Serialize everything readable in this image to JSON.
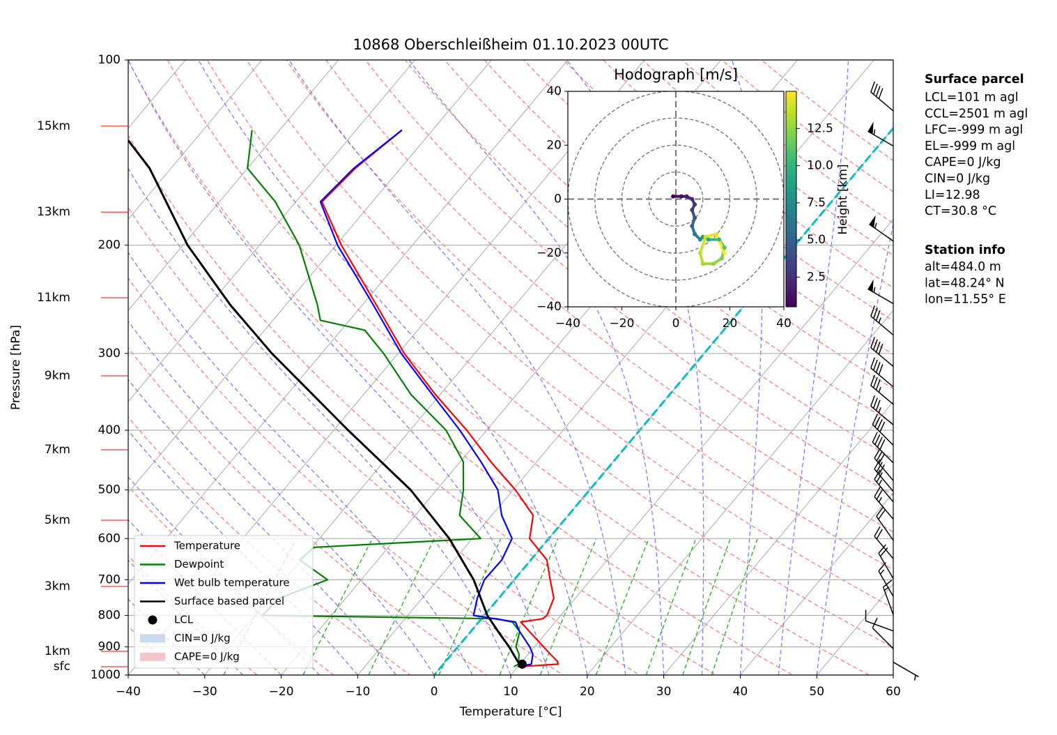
{
  "chart_data": [
    {
      "type": "skewt",
      "title": "10868 Oberschleißheim 01.10.2023 00UTC",
      "xlabel": "Temperature [°C]",
      "ylabel": "Pressure [hPa]",
      "xlim": [
        -40,
        60
      ],
      "xticks": [
        {
          "value": -40,
          "label": "−40"
        },
        {
          "value": -30,
          "label": "−30"
        },
        {
          "value": -20,
          "label": "−20"
        },
        {
          "value": -10,
          "label": "−10"
        },
        0,
        10,
        20,
        30,
        40,
        50,
        60
      ],
      "ylim": [
        1000,
        100
      ],
      "yscale": "log",
      "yticks": [
        100,
        200,
        300,
        400,
        500,
        600,
        700,
        800,
        900,
        1000
      ],
      "grid": true,
      "legend": "lower left",
      "series": [
        {
          "name": "Temperature",
          "color": "#ff0000",
          "pressure": [
            969,
            960,
            950,
            925,
            900,
            850,
            820,
            810,
            800,
            750,
            700,
            650,
            600,
            550,
            500,
            450,
            400,
            350,
            300,
            250,
            200,
            170,
            150,
            130
          ],
          "values": [
            10.4,
            15.0,
            14.6,
            12.9,
            11.2,
            7.7,
            5.5,
            8.0,
            8.2,
            7.2,
            4.7,
            2.1,
            -2.5,
            -4.6,
            -9.7,
            -16.0,
            -22.6,
            -30.6,
            -39.2,
            -48.2,
            -59.3,
            -66.6,
            -65.9,
            -64.0
          ]
        },
        {
          "name": "Dewpoint",
          "color": "#008000",
          "pressure": [
            969,
            960,
            925,
            900,
            850,
            820,
            810,
            800,
            750,
            700,
            650,
            620,
            600,
            550,
            500,
            450,
            400,
            350,
            300,
            275,
            265,
            250,
            200,
            170,
            150,
            130
          ],
          "values": [
            9.5,
            9.8,
            8.8,
            7.6,
            6.4,
            4.4,
            2.0,
            -29.0,
            -28.7,
            -24.4,
            -30.2,
            -29.7,
            -8.9,
            -14.2,
            -16.5,
            -19.6,
            -25.3,
            -33.8,
            -41.9,
            -46.9,
            -53.8,
            -55.9,
            -64.8,
            -72.7,
            -80.0,
            -83.6
          ]
        },
        {
          "name": "Wet bulb temperature",
          "color": "#0000ff",
          "pressure": [
            969,
            960,
            925,
            900,
            850,
            820,
            800,
            750,
            700,
            650,
            600,
            550,
            500,
            450,
            400,
            350,
            300,
            250,
            200,
            170,
            150,
            130
          ],
          "values": [
            10.0,
            11.5,
            10.6,
            9.4,
            6.4,
            4.8,
            -1.4,
            -2.8,
            -3.9,
            -3.8,
            -4.8,
            -8.7,
            -12.0,
            -17.3,
            -23.5,
            -31.0,
            -39.6,
            -48.6,
            -59.8,
            -66.8,
            -66.1,
            -64.0
          ]
        },
        {
          "name": "Surface based parcel",
          "color": "#000000",
          "pressure": [
            969,
            950,
            900,
            850,
            800,
            700,
            600,
            500,
            400,
            300,
            250,
            200,
            150,
            135
          ],
          "values": [
            10.4,
            9.4,
            6.7,
            3.6,
            0.4,
            -5.3,
            -13.0,
            -23.4,
            -38.1,
            -56.5,
            -67.3,
            -79.4,
            -92.8,
            -98.7
          ]
        }
      ],
      "lcl": {
        "name": "LCL",
        "pressure": 960,
        "temperature": 10.3,
        "color": "#000000"
      },
      "cin": {
        "name": "CIN=0 J/kg",
        "color": "#c6dbef"
      },
      "cape": {
        "name": "CAPE=0 J/kg",
        "color": "#f4c6c9"
      },
      "freezing_isotherm": {
        "value": 0,
        "color": "#00bfbf"
      },
      "height_labels": [
        {
          "label": "15km",
          "pressure": 128.1
        },
        {
          "label": "13km",
          "pressure": 176.7
        },
        {
          "label": "11km",
          "pressure": 243.6
        },
        {
          "label": "9km",
          "pressure": 326.3
        },
        {
          "label": "7km",
          "pressure": 430.3
        },
        {
          "label": "5km",
          "pressure": 560.2
        },
        {
          "label": "3km",
          "pressure": 717.8
        },
        {
          "label": "1km",
          "pressure": 915.2
        },
        {
          "label": "sfc",
          "pressure": 969.2
        }
      ],
      "wind_barbs": {
        "pressure": [
          121,
          138,
          197,
          249,
          280,
          315,
          340,
          363,
          392,
          423,
          452,
          483,
          503,
          523,
          558,
          604,
          647,
          697,
          745,
          798,
          848,
          906,
          953
        ],
        "direction": [
          310,
          300,
          305,
          300,
          310,
          310,
          310,
          310,
          310,
          315,
          315,
          320,
          320,
          320,
          320,
          325,
          320,
          330,
          330,
          340,
          290,
          315,
          120
        ],
        "speed": [
          40,
          55,
          55,
          55,
          35,
          40,
          40,
          35,
          35,
          40,
          40,
          30,
          30,
          25,
          25,
          20,
          20,
          20,
          15,
          15,
          10,
          10,
          5
        ]
      }
    },
    {
      "type": "hodograph",
      "title": "Hodograph [m/s]",
      "colorbar_label": "Height [km]",
      "xlim": [
        -40,
        40
      ],
      "ylim": [
        -40,
        40
      ],
      "xticks": [
        {
          "value": -40,
          "label": "−40"
        },
        {
          "value": -20,
          "label": "−20"
        },
        0,
        20,
        40
      ],
      "yticks": [
        {
          "value": -40,
          "label": "−40"
        },
        {
          "value": -20,
          "label": "−20"
        },
        0,
        20,
        40
      ],
      "rings": [
        10,
        20,
        30,
        40
      ],
      "clim": [
        0.5,
        15.0
      ],
      "cticks": [
        2.5,
        {
          "value": 5,
          "label": "5.0"
        },
        7.5,
        {
          "value": 10,
          "label": "10.0"
        },
        12.5
      ],
      "colormap": "viridis",
      "u": [
        -1,
        2,
        4,
        6,
        7,
        6,
        7,
        6,
        7,
        9,
        10,
        12,
        16,
        18,
        17,
        14,
        10,
        9,
        11,
        15,
        18
      ],
      "v": [
        1,
        1,
        1,
        0,
        -2,
        -4,
        -7,
        -10,
        -13,
        -15,
        -14,
        -15,
        -15,
        -18,
        -22,
        -24,
        -24,
        -20,
        -14,
        -13,
        -20
      ],
      "height": [
        0.5,
        1.0,
        1.5,
        2.0,
        2.5,
        3.0,
        4.0,
        5.0,
        6.0,
        7.0,
        8.0,
        9.0,
        10.0,
        11.0,
        12.0,
        12.5,
        13.0,
        13.5,
        14.0,
        14.5,
        15.0
      ]
    }
  ],
  "info": {
    "surface_parcel": {
      "title": "Surface parcel",
      "lines": [
        "LCL=101 m agl",
        "CCL=2501 m agl",
        "LFC=-999 m agl",
        "EL=-999 m agl",
        "CAPE=0 J/kg",
        "CIN=0 J/kg",
        "LI=12.98",
        "CT=30.8 °C"
      ]
    },
    "station_info": {
      "title": "Station info",
      "lines": [
        "alt=484.0 m",
        "lat=48.24° N",
        "lon=11.55° E"
      ]
    }
  }
}
